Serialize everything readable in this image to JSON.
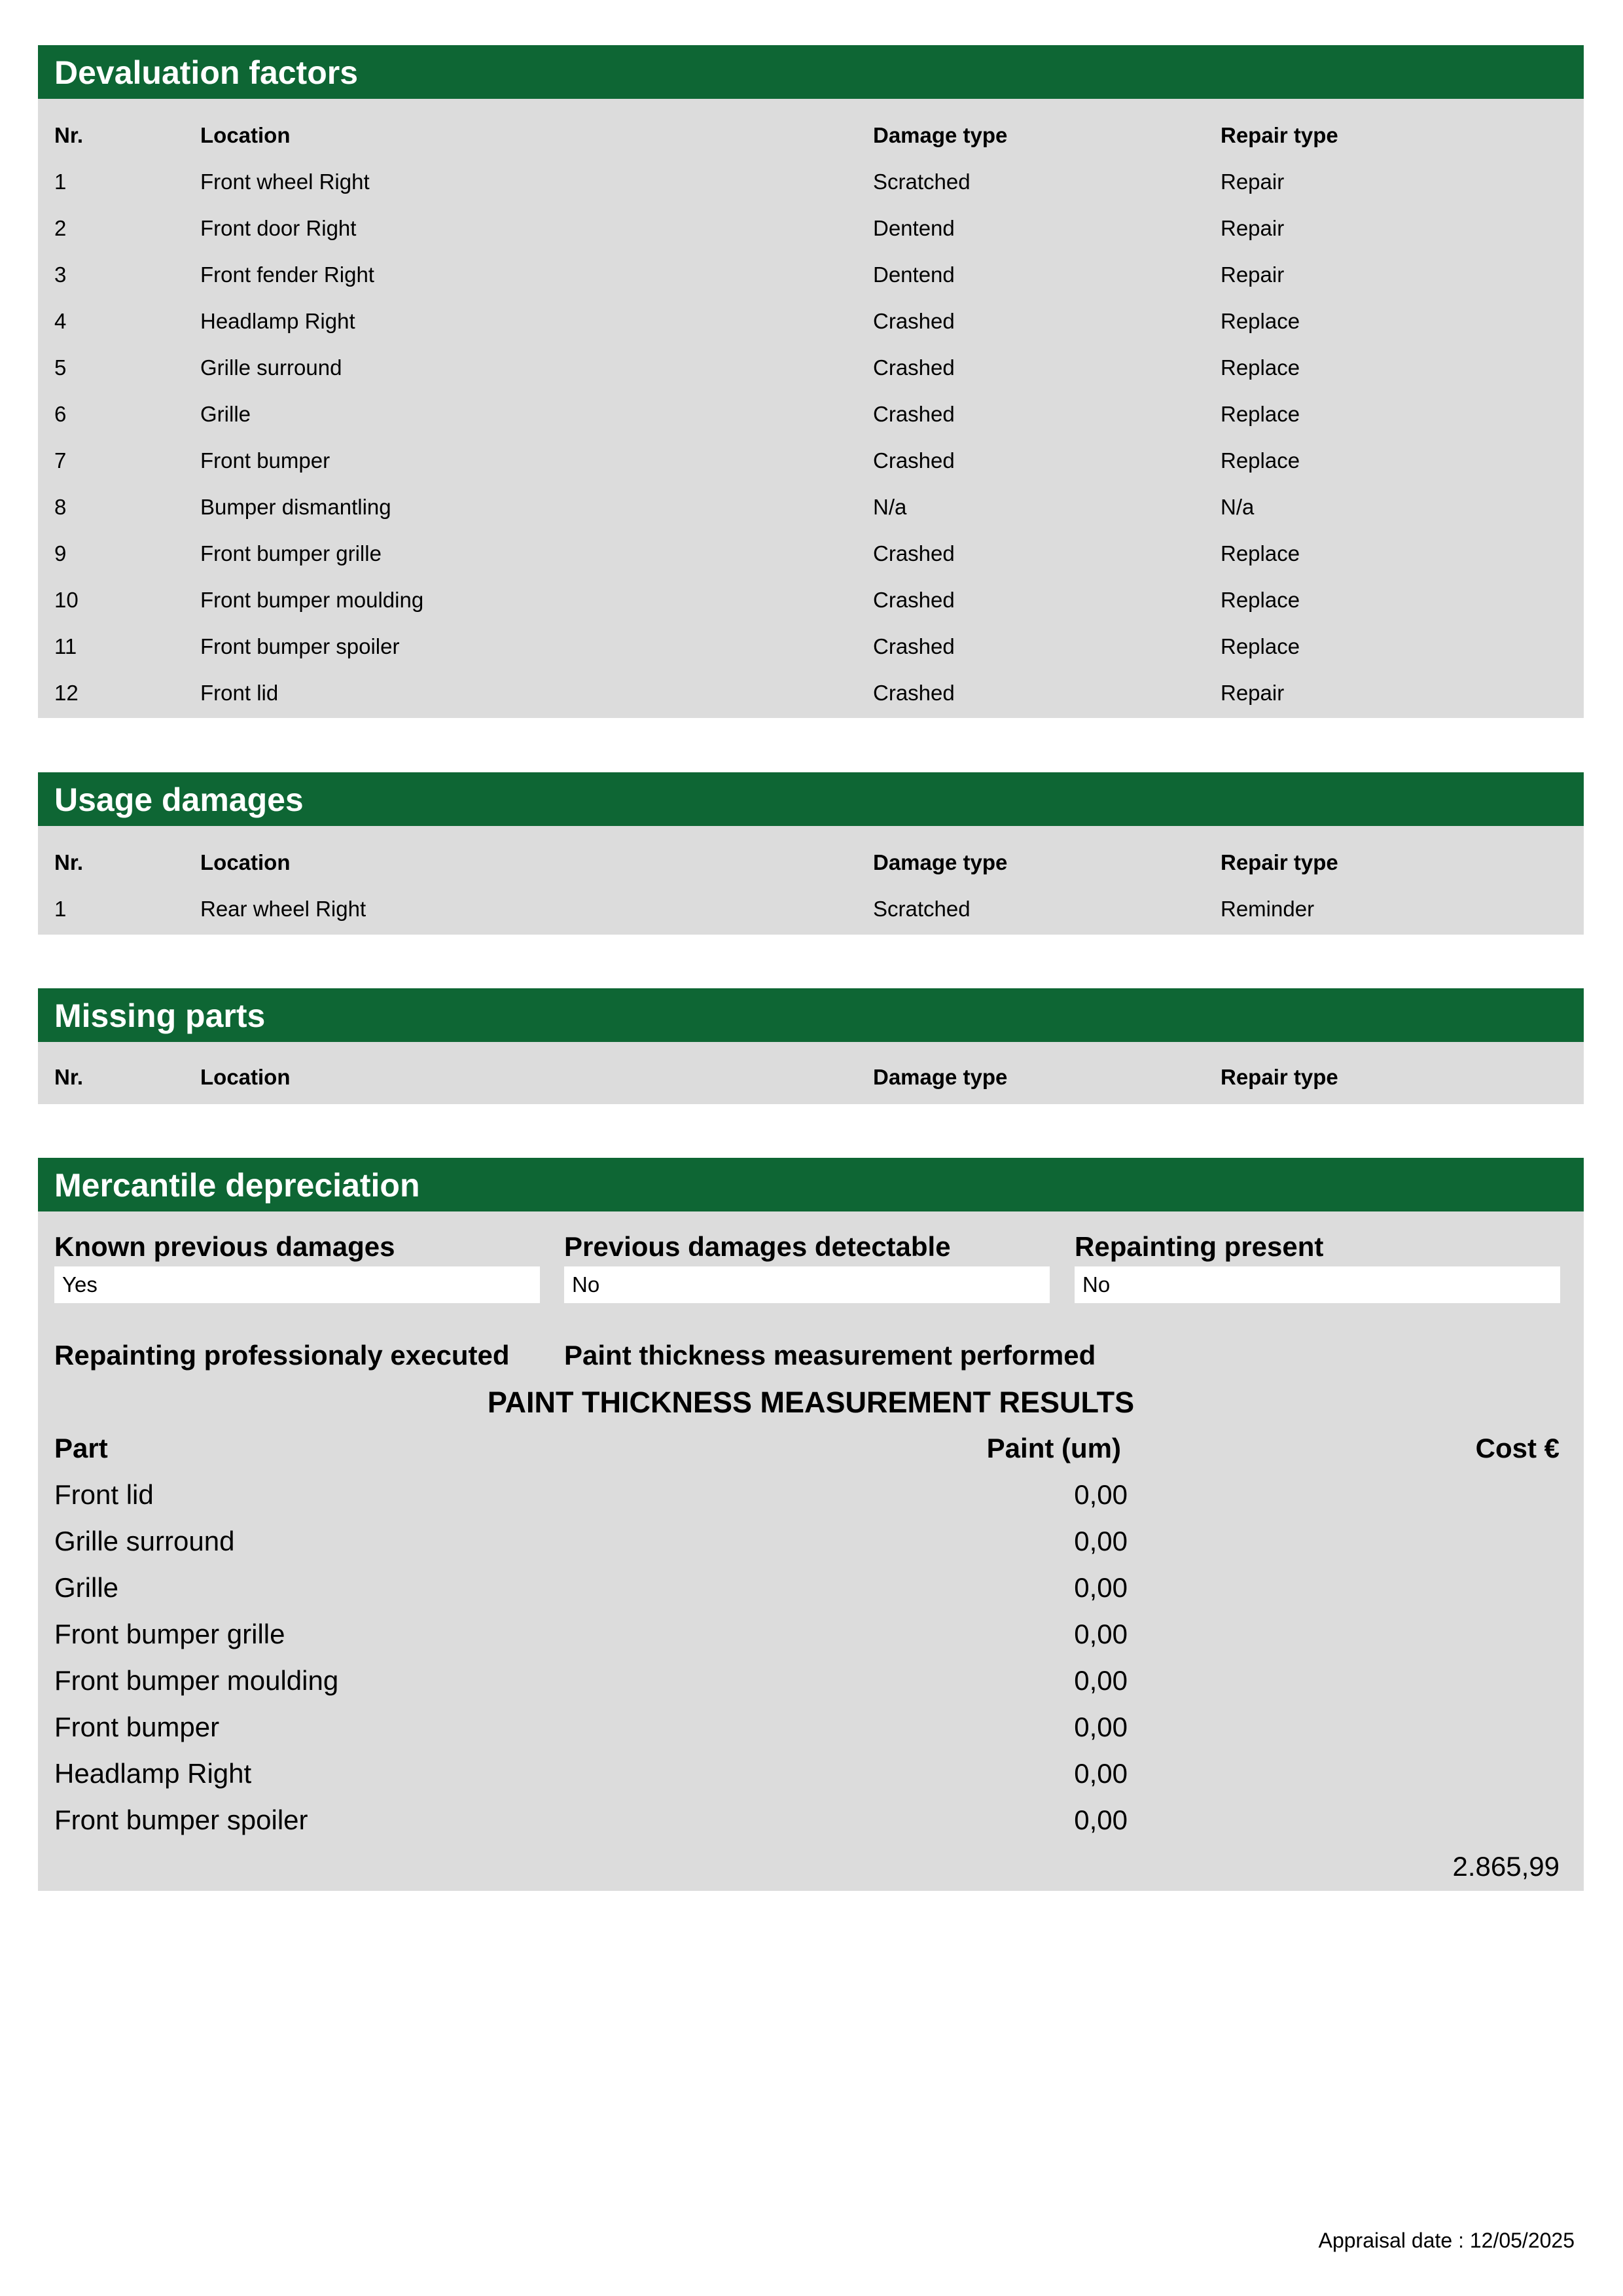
{
  "devaluation": {
    "title": "Devaluation factors",
    "headers": [
      "Nr.",
      "Location",
      "Damage type",
      "Repair type"
    ],
    "rows": [
      [
        "1",
        "Front wheel Right",
        "Scratched",
        "Repair"
      ],
      [
        "2",
        "Front door Right",
        "Dentend",
        "Repair"
      ],
      [
        "3",
        "Front fender Right",
        "Dentend",
        "Repair"
      ],
      [
        "4",
        "Headlamp Right",
        "Crashed",
        "Replace"
      ],
      [
        "5",
        "Grille surround",
        "Crashed",
        "Replace"
      ],
      [
        "6",
        "Grille",
        "Crashed",
        "Replace"
      ],
      [
        "7",
        "Front bumper",
        "Crashed",
        "Replace"
      ],
      [
        "8",
        "Bumper dismantling",
        "N/a",
        "N/a"
      ],
      [
        "9",
        "Front bumper grille",
        "Crashed",
        "Replace"
      ],
      [
        "10",
        "Front bumper moulding",
        "Crashed",
        "Replace"
      ],
      [
        "11",
        "Front bumper spoiler",
        "Crashed",
        "Replace"
      ],
      [
        "12",
        "Front lid",
        "Crashed",
        "Repair"
      ]
    ]
  },
  "usage": {
    "title": "Usage damages",
    "headers": [
      "Nr.",
      "Location",
      "Damage type",
      "Repair type"
    ],
    "rows": [
      [
        "1",
        "Rear wheel Right",
        "Scratched",
        "Reminder"
      ]
    ]
  },
  "missing": {
    "title": "Missing parts",
    "headers": [
      "Nr.",
      "Location",
      "Damage type",
      "Repair type"
    ]
  },
  "mercantile": {
    "title": "Mercantile depreciation",
    "fields": [
      {
        "label": "Known previous damages",
        "value": "Yes"
      },
      {
        "label": "Previous damages detectable",
        "value": "No"
      },
      {
        "label": "Repainting present",
        "value": "No"
      }
    ],
    "label_repaint_prof": "Repainting professionaly executed",
    "label_paint_measure": "Paint thickness measurement performed",
    "results_title": "PAINT THICKNESS MEASUREMENT RESULTS",
    "col_part": "Part",
    "col_paint": "Paint (um)",
    "col_cost": "Cost €",
    "parts": [
      [
        "Front lid",
        "0,00"
      ],
      [
        "Grille surround",
        "0,00"
      ],
      [
        "Grille",
        "0,00"
      ],
      [
        "Front bumper grille",
        "0,00"
      ],
      [
        "Front bumper moulding",
        "0,00"
      ],
      [
        "Front bumper",
        "0,00"
      ],
      [
        "Headlamp Right",
        "0,00"
      ],
      [
        "Front bumper spoiler",
        "0,00"
      ]
    ],
    "total": "2.865,99"
  },
  "appraisal_date": "Appraisal date : 12/05/2025",
  "colors": {
    "header_green": "#0e6634",
    "panel_gray": "#dcdcdc"
  }
}
